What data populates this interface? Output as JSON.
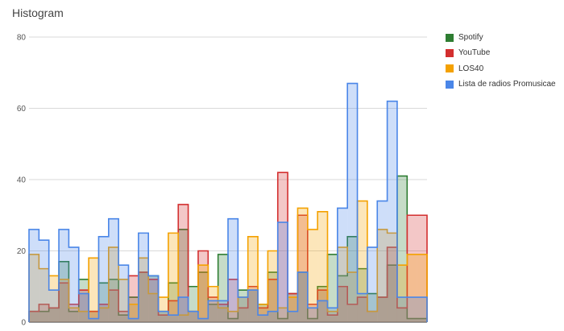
{
  "chart_data": {
    "type": "histogram",
    "title": "Histogram",
    "xlabel": "",
    "ylabel": "",
    "ylim": [
      0,
      80
    ],
    "yticks": [
      0,
      20,
      40,
      60,
      80
    ],
    "grid": true,
    "legend_position": "right",
    "bins": 40,
    "series": [
      {
        "name": "Spotify",
        "color": "#2e7d32",
        "values": [
          3,
          3,
          4,
          17,
          3,
          12,
          3,
          11,
          12,
          2,
          7,
          14,
          13,
          3,
          11,
          26,
          10,
          14,
          5,
          19,
          1,
          9,
          9,
          5,
          14,
          1,
          8,
          14,
          1,
          10,
          19,
          13,
          24,
          15,
          8,
          7,
          16,
          41,
          1,
          1
        ]
      },
      {
        "name": "YouTube",
        "color": "#d32f2f",
        "values": [
          3,
          5,
          4,
          11,
          5,
          9,
          3,
          5,
          9,
          3,
          13,
          14,
          12,
          2,
          6,
          33,
          3,
          20,
          7,
          5,
          12,
          4,
          10,
          4,
          12,
          42,
          8,
          30,
          5,
          9,
          2,
          10,
          5,
          7,
          3,
          7,
          21,
          4,
          30,
          30
        ]
      },
      {
        "name": "LOS40",
        "color": "#f4a100",
        "values": [
          19,
          15,
          13,
          12,
          4,
          3,
          18,
          4,
          21,
          12,
          5,
          18,
          8,
          7,
          25,
          2,
          3,
          16,
          10,
          4,
          3,
          7,
          24,
          5,
          20,
          4,
          7,
          32,
          26,
          31,
          3,
          21,
          14,
          34,
          3,
          26,
          25,
          16,
          19,
          19
        ]
      },
      {
        "name": "Lista de radios Promusicae",
        "color": "#4a86e8",
        "values": [
          26,
          23,
          9,
          26,
          21,
          8,
          1,
          24,
          29,
          16,
          1,
          25,
          13,
          3,
          2,
          7,
          3,
          1,
          6,
          6,
          29,
          7,
          9,
          2,
          3,
          28,
          3,
          14,
          4,
          6,
          4,
          32,
          67,
          8,
          21,
          34,
          62,
          7,
          7,
          7
        ]
      }
    ]
  }
}
